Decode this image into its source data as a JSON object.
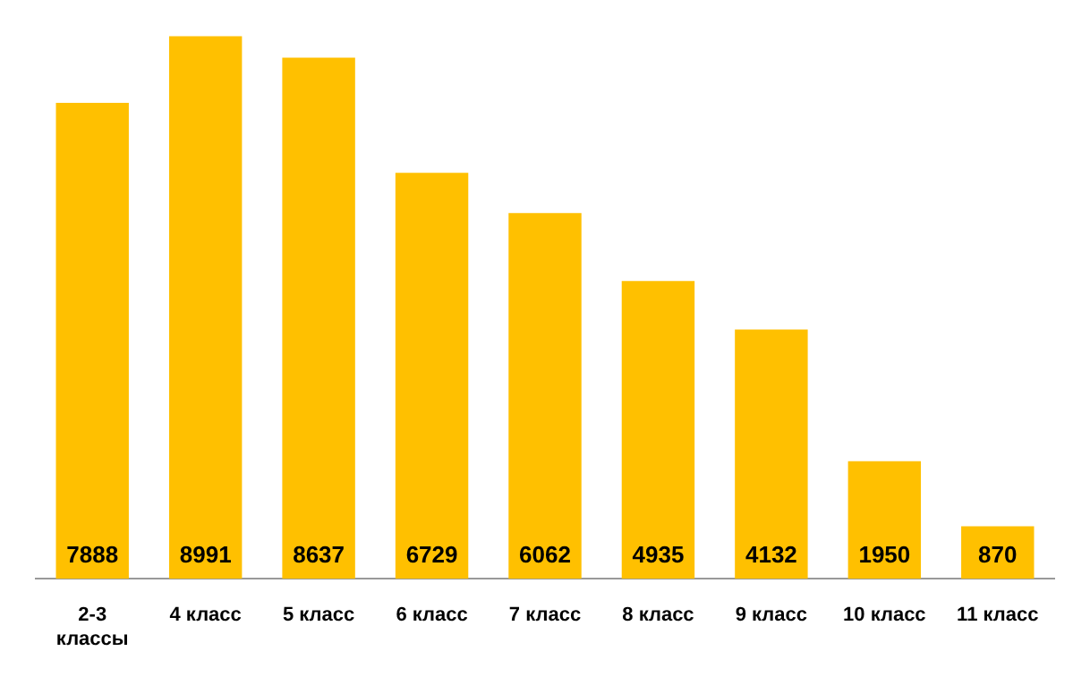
{
  "chart_data": {
    "type": "bar",
    "categories": [
      "2-3 классы",
      "4 класс",
      "5 класс",
      "6 класс",
      "7 класс",
      "8 класс",
      "9 класс",
      "10 класс",
      "11 класс"
    ],
    "values": [
      7888,
      8991,
      8637,
      6729,
      6062,
      4935,
      4132,
      1950,
      870
    ],
    "color": "#ffc000",
    "data_labels": true,
    "grid": false,
    "legend": false,
    "tick_labels": "x"
  }
}
